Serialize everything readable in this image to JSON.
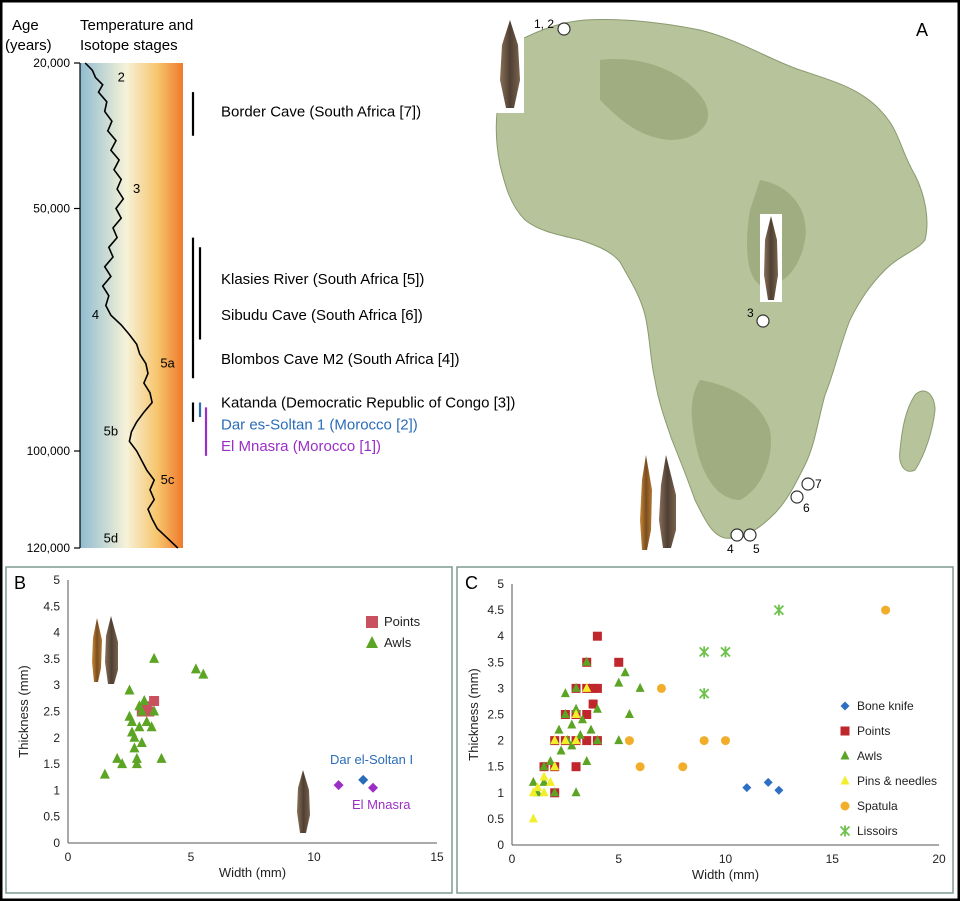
{
  "colors": {
    "frame": "#000000",
    "panel_border": "#7f9a93",
    "dar_blue": "#2b6cb8",
    "mnasra_purple": "#9a2fc6",
    "points_red": "#c0272d",
    "points_pink": "#c9505f",
    "awls_green": "#5ba424",
    "bone_knife_blue": "#2d6fc4",
    "pins_yellow": "#f2ef2a",
    "spatula_orange": "#f2ad2b",
    "lissoirs_green": "#6cc24a",
    "map_land": "#b7c39a",
    "map_ocean": "#ffffff",
    "artifact_bone": "#6b5a49"
  },
  "panelA": {
    "label": "A",
    "header_age": [
      "Age",
      "(years)"
    ],
    "header_temp": [
      "Temperature and",
      "Isotope stages"
    ],
    "age_ticks": [
      {
        "age": 20000,
        "label": "20,000"
      },
      {
        "age": 50000,
        "label": "50,000"
      },
      {
        "age": 100000,
        "label": "100,000"
      },
      {
        "age": 120000,
        "label": "120,000"
      }
    ],
    "stages": [
      {
        "label": "2",
        "age": 23000,
        "pos": 0.4
      },
      {
        "label": "3",
        "age": 46000,
        "pos": 0.55
      },
      {
        "label": "4",
        "age": 72000,
        "pos": 0.15
      },
      {
        "label": "5a",
        "age": 82000,
        "pos": 0.85
      },
      {
        "label": "5b",
        "age": 96000,
        "pos": 0.3
      },
      {
        "label": "5c",
        "age": 106000,
        "pos": 0.85
      },
      {
        "label": "5d",
        "age": 118000,
        "pos": 0.3
      }
    ],
    "temperature_curve": [
      [
        20000,
        0.05
      ],
      [
        21500,
        0.12
      ],
      [
        23000,
        0.15
      ],
      [
        24500,
        0.22
      ],
      [
        26000,
        0.18
      ],
      [
        28000,
        0.26
      ],
      [
        30000,
        0.24
      ],
      [
        32000,
        0.31
      ],
      [
        34000,
        0.27
      ],
      [
        36000,
        0.35
      ],
      [
        38000,
        0.3
      ],
      [
        40000,
        0.38
      ],
      [
        42000,
        0.33
      ],
      [
        44000,
        0.4
      ],
      [
        46000,
        0.36
      ],
      [
        48000,
        0.42
      ],
      [
        50000,
        0.35
      ],
      [
        52000,
        0.4
      ],
      [
        54000,
        0.32
      ],
      [
        56000,
        0.36
      ],
      [
        58000,
        0.28
      ],
      [
        60000,
        0.32
      ],
      [
        62000,
        0.24
      ],
      [
        64000,
        0.3
      ],
      [
        66000,
        0.22
      ],
      [
        68000,
        0.28
      ],
      [
        70000,
        0.25
      ],
      [
        72000,
        0.3
      ],
      [
        74000,
        0.4
      ],
      [
        76000,
        0.48
      ],
      [
        78000,
        0.55
      ],
      [
        80000,
        0.58
      ],
      [
        82000,
        0.64
      ],
      [
        84000,
        0.66
      ],
      [
        86000,
        0.62
      ],
      [
        88000,
        0.68
      ],
      [
        90000,
        0.7
      ],
      [
        92000,
        0.62
      ],
      [
        94000,
        0.55
      ],
      [
        96000,
        0.5
      ],
      [
        98000,
        0.48
      ],
      [
        100000,
        0.55
      ],
      [
        102000,
        0.6
      ],
      [
        104000,
        0.65
      ],
      [
        106000,
        0.72
      ],
      [
        108000,
        0.68
      ],
      [
        110000,
        0.72
      ],
      [
        112000,
        0.66
      ],
      [
        114000,
        0.7
      ],
      [
        116000,
        0.75
      ],
      [
        118000,
        0.85
      ],
      [
        120000,
        0.95
      ]
    ],
    "sites": [
      {
        "name": "Border Cave (South Africa [7])",
        "start": 26000,
        "end": 35000,
        "bar_x": 193,
        "color": "#000000",
        "label_age": 30000
      },
      {
        "name": "Klasies River  (South Africa [5])",
        "start": 56000,
        "end": 77000,
        "bar_x": 193,
        "color": "#000000",
        "label_age": 64500
      },
      {
        "name": "Sibudu Cave (South Africa [6])",
        "start": 58000,
        "end": 77000,
        "bar_x": 200,
        "color": "#000000",
        "label_age": 72000
      },
      {
        "name": "Blombos Cave M2 (South Africa [4])",
        "start": 77000,
        "end": 85000,
        "bar_x": 193,
        "color": "#000000",
        "label_age": 81000
      },
      {
        "name": "Katanda (Democratic Republic of Congo [3])",
        "start": 90000,
        "end": 94000,
        "bar_x": 193,
        "color": "#000000",
        "label_age": 90000
      },
      {
        "name": "Dar es-Soltan 1 (Morocco [2])",
        "start": 90000,
        "end": 93000,
        "bar_x": 200,
        "color": "#2b6cb8",
        "label_age": 94500
      },
      {
        "name": "El Mnasra (Morocco [1])",
        "start": 91000,
        "end": 101000,
        "bar_x": 206,
        "color": "#9a2fc6",
        "label_age": 99000
      }
    ],
    "map_markers": [
      {
        "label": "1, 2",
        "pos": "top"
      },
      {
        "label": "3",
        "pos": "left"
      },
      {
        "label": "4",
        "pos": "below"
      },
      {
        "label": "5",
        "pos": "below"
      },
      {
        "label": "6",
        "pos": "below"
      },
      {
        "label": "7",
        "pos": "right"
      }
    ]
  },
  "chart_data": [
    {
      "panel": "B",
      "type": "scatter",
      "xlabel": "Width (mm)",
      "ylabel": "Thickness (mm)",
      "xlim": [
        0,
        15
      ],
      "ylim": [
        0,
        5
      ],
      "x_ticks": [
        0,
        5,
        10,
        15
      ],
      "y_ticks": [
        0,
        0.5,
        1,
        1.5,
        2,
        2.5,
        3,
        3.5,
        4,
        4.5,
        5
      ],
      "y_tick_labels": [
        "0",
        "0.5",
        "1",
        "1.5",
        "2",
        "2.5",
        "3",
        "3.5",
        "4",
        "4.5",
        "5"
      ],
      "grid": false,
      "legend_position": "top-right",
      "series": [
        {
          "name": "Points",
          "marker": "square",
          "color": "#c9505f",
          "points": [
            [
              3.0,
              2.5
            ],
            [
              3.2,
              2.6
            ],
            [
              3.5,
              2.7
            ],
            [
              3.3,
              2.5
            ]
          ]
        },
        {
          "name": "Awls",
          "marker": "triangle",
          "color": "#5ba424",
          "points": [
            [
              1.5,
              1.3
            ],
            [
              2.0,
              1.6
            ],
            [
              2.2,
              1.5
            ],
            [
              2.5,
              2.9
            ],
            [
              2.5,
              2.4
            ],
            [
              2.6,
              2.3
            ],
            [
              2.6,
              2.1
            ],
            [
              2.7,
              2.0
            ],
            [
              2.7,
              1.8
            ],
            [
              2.8,
              1.5
            ],
            [
              2.8,
              1.6
            ],
            [
              2.9,
              2.6
            ],
            [
              2.9,
              2.2
            ],
            [
              3.0,
              1.9
            ],
            [
              3.0,
              2.5
            ],
            [
              3.1,
              2.7
            ],
            [
              3.2,
              2.3
            ],
            [
              3.4,
              2.2
            ],
            [
              3.5,
              2.5
            ],
            [
              3.5,
              3.5
            ],
            [
              3.8,
              1.6
            ],
            [
              5.2,
              3.3
            ],
            [
              5.5,
              3.2
            ]
          ]
        }
      ],
      "annotated_points": [
        {
          "label": "Dar el-Soltan I",
          "color": "#2b6cb8",
          "points": [
            [
              12.0,
              1.2
            ]
          ]
        },
        {
          "label": "El Mnasra",
          "color": "#9a2fc6",
          "points": [
            [
              11.0,
              1.1
            ],
            [
              12.4,
              1.05
            ]
          ]
        }
      ]
    },
    {
      "panel": "C",
      "type": "scatter",
      "xlabel": "Width (mm)",
      "ylabel": "Thickness (mm)",
      "xlim": [
        0,
        20
      ],
      "ylim": [
        0,
        5
      ],
      "x_ticks": [
        0,
        5,
        10,
        15,
        20
      ],
      "y_ticks": [
        0,
        0.5,
        1,
        1.5,
        2,
        2.5,
        3,
        3.5,
        4,
        4.5,
        5
      ],
      "y_tick_labels": [
        "0",
        "0.5",
        "1",
        "1.5",
        "2",
        "2.5",
        "3",
        "3.5",
        "4",
        "4.5",
        "5"
      ],
      "grid": false,
      "legend_position": "right",
      "series": [
        {
          "name": "Bone knife",
          "marker": "diamond",
          "color": "#2d6fc4",
          "points": [
            [
              11.0,
              1.1
            ],
            [
              12.0,
              1.2
            ],
            [
              12.5,
              1.05
            ]
          ]
        },
        {
          "name": "Points",
          "marker": "square",
          "color": "#c0272d",
          "points": [
            [
              1.5,
              1.5
            ],
            [
              2.0,
              1.0
            ],
            [
              2.0,
              1.5
            ],
            [
              2.0,
              2.0
            ],
            [
              2.5,
              2.0
            ],
            [
              2.5,
              2.5
            ],
            [
              3.0,
              1.5
            ],
            [
              3.0,
              2.0
            ],
            [
              3.0,
              2.5
            ],
            [
              3.0,
              3.0
            ],
            [
              3.5,
              2.0
            ],
            [
              3.5,
              3.0
            ],
            [
              3.5,
              3.5
            ],
            [
              3.5,
              2.5
            ],
            [
              3.8,
              2.7
            ],
            [
              3.8,
              3.0
            ],
            [
              4.0,
              2.0
            ],
            [
              4.0,
              3.0
            ],
            [
              4.0,
              4.0
            ],
            [
              5.0,
              3.5
            ]
          ]
        },
        {
          "name": "Awls",
          "marker": "triangle",
          "color": "#5ba424",
          "points": [
            [
              1.0,
              1.2
            ],
            [
              1.2,
              1.0
            ],
            [
              1.5,
              1.5
            ],
            [
              1.5,
              1.2
            ],
            [
              1.8,
              1.6
            ],
            [
              2.0,
              1.0
            ],
            [
              2.0,
              1.5
            ],
            [
              2.0,
              2.0
            ],
            [
              2.2,
              2.2
            ],
            [
              2.3,
              1.8
            ],
            [
              2.5,
              2.5
            ],
            [
              2.5,
              2.9
            ],
            [
              2.6,
              2.0
            ],
            [
              2.8,
              2.3
            ],
            [
              2.8,
              1.9
            ],
            [
              3.0,
              2.6
            ],
            [
              3.0,
              3.0
            ],
            [
              3.0,
              1.0
            ],
            [
              3.2,
              2.1
            ],
            [
              3.3,
              2.4
            ],
            [
              3.5,
              3.5
            ],
            [
              3.5,
              1.6
            ],
            [
              3.7,
              2.2
            ],
            [
              4.0,
              2.0
            ],
            [
              4.0,
              2.6
            ],
            [
              5.0,
              3.1
            ],
            [
              5.0,
              2.0
            ],
            [
              5.3,
              3.3
            ],
            [
              5.5,
              2.5
            ],
            [
              6.0,
              3.0
            ]
          ]
        },
        {
          "name": "Pins & needles",
          "marker": "triangle",
          "color": "#f2ef2a",
          "points": [
            [
              1.0,
              0.5
            ],
            [
              1.0,
              1.0
            ],
            [
              1.2,
              1.1
            ],
            [
              1.5,
              1.0
            ],
            [
              1.5,
              1.3
            ],
            [
              2.0,
              1.5
            ],
            [
              2.0,
              2.0
            ],
            [
              2.5,
              2.0
            ],
            [
              3.0,
              2.0
            ],
            [
              3.0,
              2.5
            ],
            [
              3.5,
              3.0
            ],
            [
              1.8,
              1.2
            ]
          ]
        },
        {
          "name": "Spatula",
          "marker": "circle",
          "color": "#f2ad2b",
          "points": [
            [
              5.5,
              2.0
            ],
            [
              6.0,
              1.5
            ],
            [
              7.0,
              3.0
            ],
            [
              8.0,
              1.5
            ],
            [
              9.0,
              2.0
            ],
            [
              10.0,
              2.0
            ],
            [
              17.5,
              4.5
            ]
          ]
        },
        {
          "name": "Lissoirs",
          "marker": "star",
          "color": "#6cc24a",
          "points": [
            [
              9.0,
              3.7
            ],
            [
              9.0,
              2.9
            ],
            [
              10.0,
              3.7
            ],
            [
              12.5,
              4.5
            ]
          ]
        }
      ]
    }
  ]
}
